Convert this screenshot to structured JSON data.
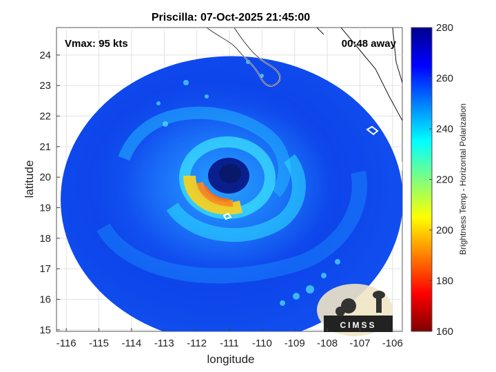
{
  "chart_data": {
    "type": "heatmap",
    "title": "Priscilla: 07-Oct-2025 21:45:00",
    "xlabel": "longitude",
    "ylabel": "latitude",
    "xlim": [
      -116.3,
      -105.7
    ],
    "ylim": [
      14.95,
      24.9
    ],
    "x_ticks": [
      -116,
      -115,
      -114,
      -113,
      -112,
      -111,
      -110,
      -109,
      -108,
      -107,
      -106
    ],
    "y_ticks": [
      15,
      16,
      17,
      18,
      19,
      20,
      21,
      22,
      23,
      24
    ],
    "grid": true,
    "colorbar": {
      "label": "Brightness Temp - Horizontal Polarization",
      "range": [
        160,
        280
      ],
      "ticks": [
        160,
        180,
        200,
        220,
        240,
        260,
        280
      ],
      "colormap": "jet"
    },
    "storm_center": {
      "lon": -110.8,
      "lat": 20.2
    },
    "annotations": {
      "vmax": "Vmax: 95 kts",
      "time_away": "00:48 away"
    },
    "colors": {
      "swath_base": "#0a37e6",
      "eye": "#0a1f6e",
      "rainband_warm": "#ff8c00",
      "coastline": "#ffffff"
    }
  },
  "logo": {
    "text": "CIMSS"
  }
}
